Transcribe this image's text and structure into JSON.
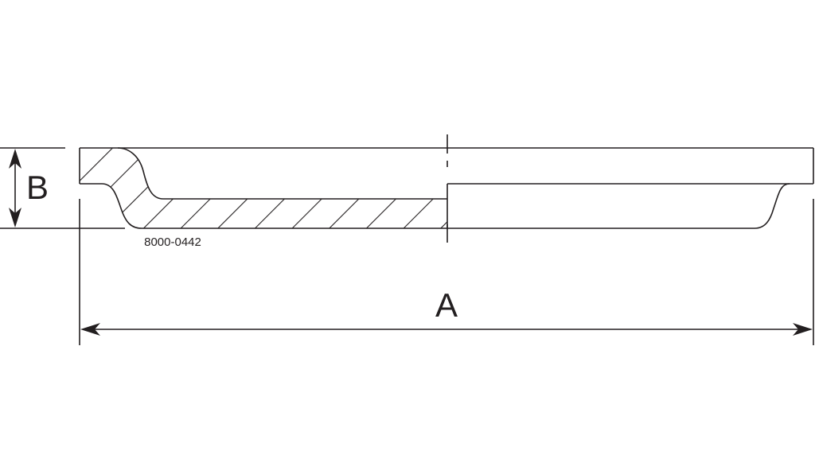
{
  "drawing": {
    "part_number": "8000-0442",
    "dimension_a_label": "A",
    "dimension_b_label": "B",
    "line_color": "#231f20"
  }
}
